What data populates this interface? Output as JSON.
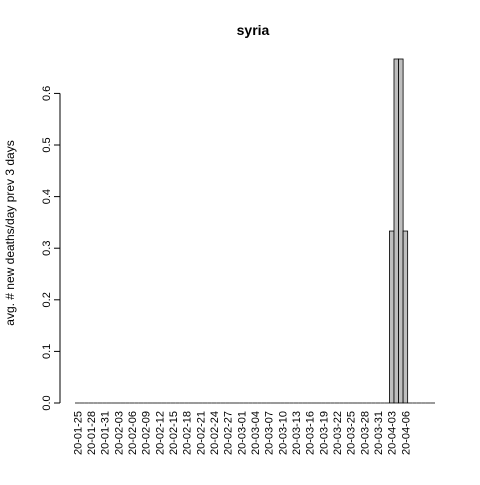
{
  "chart_data": {
    "type": "bar",
    "title": "syria",
    "xlabel": "",
    "ylabel": "avg. # new deaths/day prev  3  days",
    "ylim": [
      0,
      0.6667
    ],
    "y_ticks": [
      0.0,
      0.1,
      0.2,
      0.3,
      0.4,
      0.5,
      0.6
    ],
    "y_tick_labels": [
      "0.0",
      "0.1",
      "0.2",
      "0.3",
      "0.4",
      "0.5",
      "0.6"
    ],
    "x_tick_labels": [
      "20-01-25",
      "20-01-28",
      "20-01-31",
      "20-02-03",
      "20-02-06",
      "20-02-09",
      "20-02-12",
      "20-02-15",
      "20-02-18",
      "20-02-21",
      "20-02-24",
      "20-02-27",
      "20-03-01",
      "20-03-04",
      "20-03-07",
      "20-03-10",
      "20-03-13",
      "20-03-16",
      "20-03-19",
      "20-03-22",
      "20-03-25",
      "20-03-28",
      "20-03-31",
      "20-04-03",
      "20-04-06"
    ],
    "start_date": "2020-01-25",
    "values": [
      0,
      0,
      0,
      0,
      0,
      0,
      0,
      0,
      0,
      0,
      0,
      0,
      0,
      0,
      0,
      0,
      0,
      0,
      0,
      0,
      0,
      0,
      0,
      0,
      0,
      0,
      0,
      0,
      0,
      0,
      0,
      0,
      0,
      0,
      0,
      0,
      0,
      0,
      0,
      0,
      0,
      0,
      0,
      0,
      0,
      0,
      0,
      0,
      0,
      0,
      0,
      0,
      0,
      0,
      0,
      0,
      0,
      0,
      0,
      0,
      0,
      0,
      0,
      0,
      0,
      0,
      0,
      0,
      0,
      0.3333,
      0.6667,
      0.6667,
      0.3333,
      0,
      0,
      0,
      0,
      0,
      0
    ],
    "bar_color": "#bebebe",
    "bar_stroke": "#000000",
    "grid": false,
    "legend": "none"
  }
}
